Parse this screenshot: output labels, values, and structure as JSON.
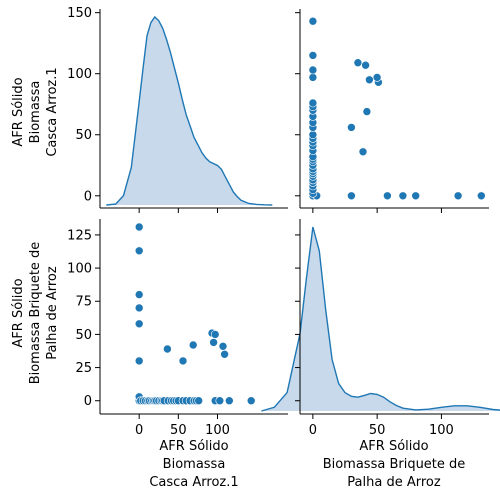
{
  "chart_data": {
    "type": "pairplot",
    "variables": [
      [
        "AFR Sólido",
        "Biomassa",
        "Casca Arroz.1"
      ],
      [
        "AFR Sólido",
        "Biomassa Briquete de",
        "Palha de Arroz"
      ]
    ],
    "grid": false,
    "legend": "none",
    "colors": {
      "point": "#1f77b4",
      "line": "#1f77b4",
      "fill": "#c4d7ea"
    },
    "axes": {
      "v1": {
        "range": [
          -50,
          190
        ],
        "ticks": [
          0,
          50,
          100
        ],
        "tick_labels": [
          "0",
          "50",
          "100"
        ]
      },
      "v2": {
        "range": [
          -10,
          137
        ],
        "ticks": [
          0,
          50,
          100
        ],
        "tick_labels": [
          "0",
          "50",
          "100"
        ]
      },
      "v1_y": {
        "range": [
          -10,
          153
        ],
        "ticks": [
          0,
          50,
          100,
          150
        ],
        "tick_labels": [
          "0",
          "50",
          "100",
          "150"
        ]
      },
      "v2_y": {
        "range": [
          -10,
          137
        ],
        "ticks": [
          0,
          25,
          50,
          75,
          100,
          125
        ],
        "tick_labels": [
          "0",
          "25",
          "50",
          "75",
          "100",
          "125"
        ]
      }
    },
    "kde_v1": {
      "x": [
        -42,
        -30,
        -20,
        -10,
        0,
        5,
        10,
        15,
        20,
        25,
        30,
        35,
        40,
        45,
        50,
        55,
        60,
        65,
        70,
        75,
        80,
        85,
        90,
        95,
        100,
        105,
        110,
        115,
        120,
        125,
        130,
        140,
        150,
        160,
        170
      ],
      "density": [
        0.0,
        0.005,
        0.05,
        0.2,
        0.55,
        0.73,
        0.9,
        0.97,
        1.0,
        0.98,
        0.94,
        0.88,
        0.81,
        0.73,
        0.65,
        0.56,
        0.48,
        0.42,
        0.36,
        0.32,
        0.28,
        0.25,
        0.23,
        0.22,
        0.21,
        0.19,
        0.15,
        0.11,
        0.07,
        0.045,
        0.025,
        0.008,
        0.003,
        0.001,
        0.0
      ]
    },
    "kde_v2": {
      "x": [
        -40,
        -30,
        -20,
        -10,
        -5,
        0,
        5,
        10,
        15,
        20,
        25,
        30,
        35,
        40,
        45,
        50,
        55,
        60,
        65,
        70,
        80,
        90,
        100,
        110,
        120,
        130,
        140,
        150,
        160
      ],
      "density": [
        0.0,
        0.02,
        0.1,
        0.42,
        0.72,
        1.0,
        0.87,
        0.55,
        0.28,
        0.15,
        0.1,
        0.08,
        0.075,
        0.085,
        0.095,
        0.09,
        0.075,
        0.05,
        0.03,
        0.015,
        0.006,
        0.01,
        0.02,
        0.028,
        0.028,
        0.02,
        0.008,
        0.002,
        0.0
      ]
    },
    "points": [
      {
        "x": 0,
        "y": 0
      },
      {
        "x": 0,
        "y": 0
      },
      {
        "x": 0,
        "y": 0
      },
      {
        "x": 0,
        "y": 131
      },
      {
        "x": 0,
        "y": 113
      },
      {
        "x": 0,
        "y": 80
      },
      {
        "x": 0,
        "y": 70
      },
      {
        "x": 0,
        "y": 58
      },
      {
        "x": 0,
        "y": 30
      },
      {
        "x": 0,
        "y": 3
      },
      {
        "x": 2,
        "y": 0
      },
      {
        "x": 5,
        "y": 0
      },
      {
        "x": 8,
        "y": 0
      },
      {
        "x": 11,
        "y": 0
      },
      {
        "x": 13,
        "y": 0
      },
      {
        "x": 16,
        "y": 0
      },
      {
        "x": 18,
        "y": 0
      },
      {
        "x": 20,
        "y": 0
      },
      {
        "x": 22,
        "y": 0
      },
      {
        "x": 25,
        "y": 0
      },
      {
        "x": 28,
        "y": 0
      },
      {
        "x": 30,
        "y": 0
      },
      {
        "x": 32,
        "y": 0
      },
      {
        "x": 37,
        "y": 0
      },
      {
        "x": 41,
        "y": 0
      },
      {
        "x": 44,
        "y": 0
      },
      {
        "x": 47,
        "y": 0
      },
      {
        "x": 50,
        "y": 0
      },
      {
        "x": 56,
        "y": 0
      },
      {
        "x": 60,
        "y": 0
      },
      {
        "x": 65,
        "y": 0
      },
      {
        "x": 70,
        "y": 0
      },
      {
        "x": 73,
        "y": 0
      },
      {
        "x": 76,
        "y": 0
      },
      {
        "x": 97,
        "y": 0
      },
      {
        "x": 103,
        "y": 0
      },
      {
        "x": 115,
        "y": 0
      },
      {
        "x": 143,
        "y": 0
      },
      {
        "x": 36,
        "y": 39
      },
      {
        "x": 56,
        "y": 30
      },
      {
        "x": 69,
        "y": 42
      },
      {
        "x": 93,
        "y": 51
      },
      {
        "x": 95,
        "y": 44
      },
      {
        "x": 97,
        "y": 50
      },
      {
        "x": 107,
        "y": 41
      },
      {
        "x": 109,
        "y": 35
      }
    ]
  }
}
